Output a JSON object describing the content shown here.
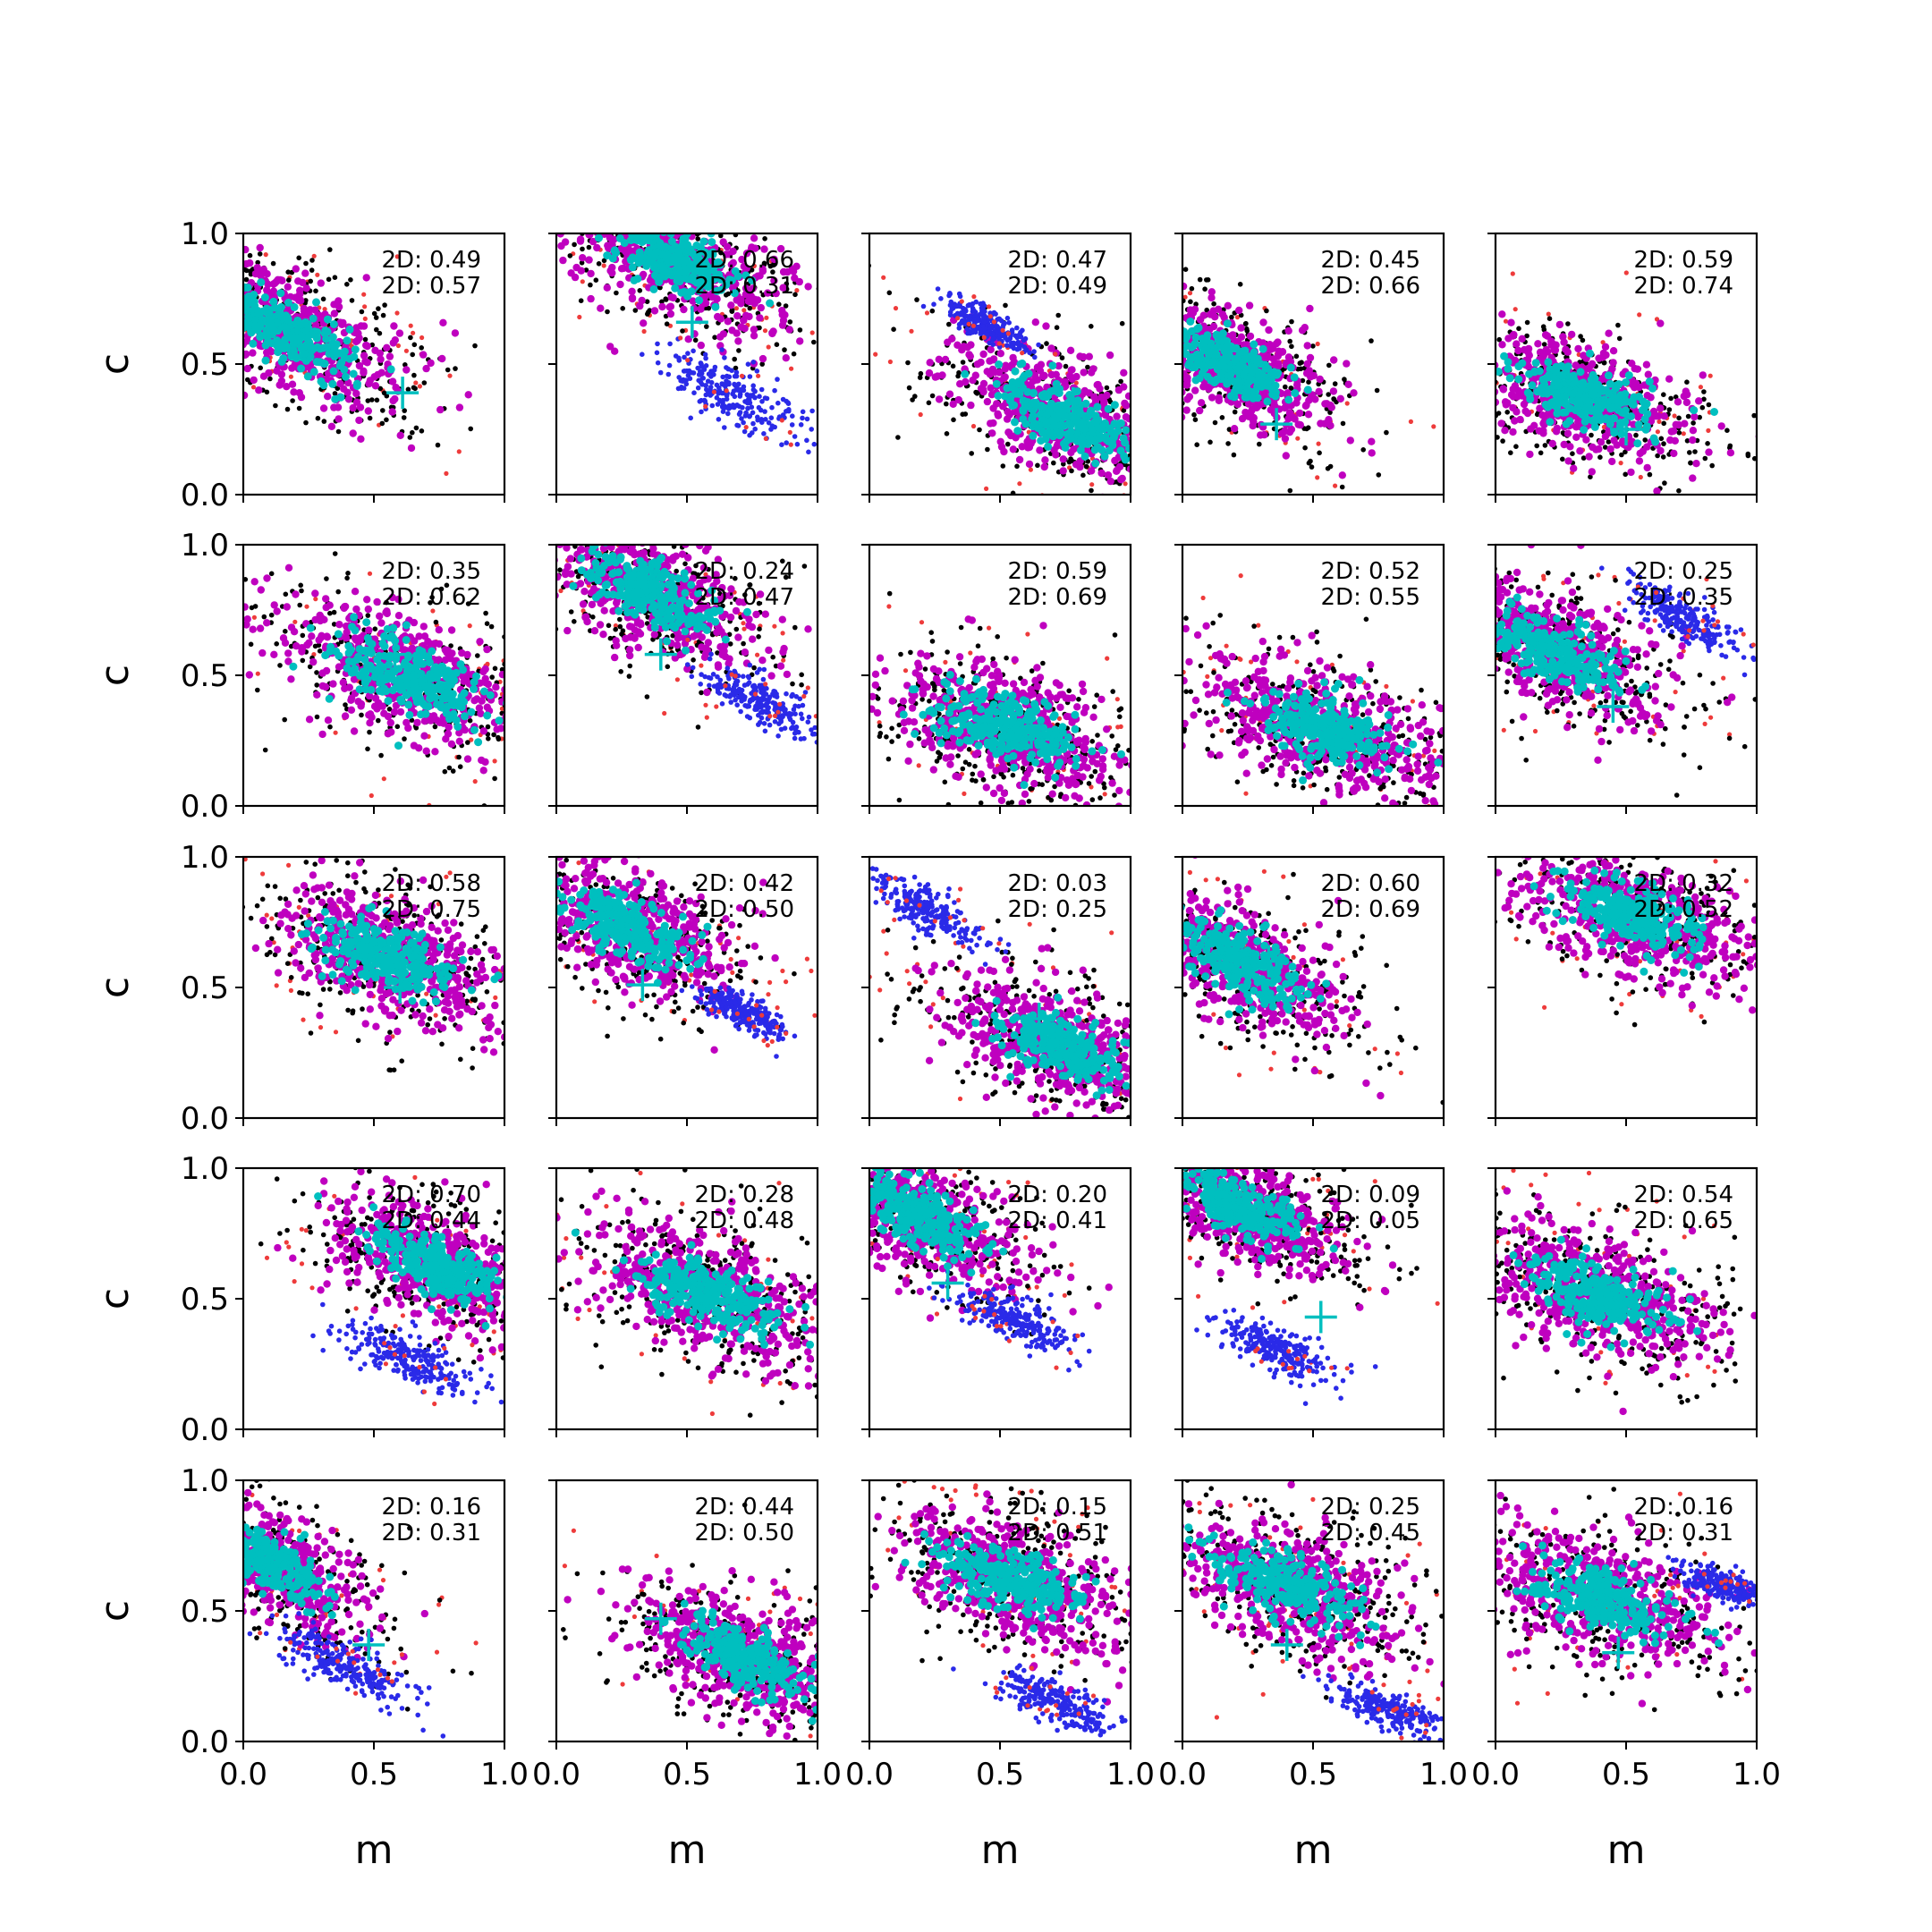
{
  "chart_data": {
    "type": "scatter",
    "grid": false,
    "rows": 5,
    "cols": 5,
    "xlabel": "m",
    "ylabel": "c",
    "xlim": [
      0.0,
      1.0
    ],
    "ylim": [
      0.0,
      1.0
    ],
    "xticks": [
      "0.0",
      "0.5",
      "1.0"
    ],
    "yticks": [
      "0.0",
      "0.5",
      "1.0"
    ],
    "annotation_prefix": "2D: ",
    "colors": {
      "red": "#ee3b3b",
      "black": "#000000",
      "blue": "#2a2ae8",
      "magenta": "#bf00bf",
      "cyan": "#00bfbf",
      "marker": "#00bfbf"
    },
    "panels": [
      {
        "row": 0,
        "col": 0,
        "annotations": [
          "0.49",
          "0.57"
        ],
        "marker": [
          0.61,
          0.39
        ],
        "clusters": [
          {
            "type": "main",
            "center": [
              0.18,
              0.62
            ],
            "slope": -0.5,
            "spread": 0.24
          }
        ]
      },
      {
        "row": 0,
        "col": 1,
        "annotations": [
          "0.66",
          "0.31"
        ],
        "marker": [
          0.52,
          0.66
        ],
        "clusters": [
          {
            "type": "main",
            "center": [
              0.45,
              0.9
            ],
            "slope": -0.45,
            "spread": 0.24
          },
          {
            "type": "blue",
            "center": [
              0.68,
              0.38
            ],
            "slope": -0.55,
            "spread": 0.18
          }
        ]
      },
      {
        "row": 0,
        "col": 2,
        "annotations": [
          "0.47",
          "0.49"
        ],
        "marker": [
          0.78,
          0.35
        ],
        "clusters": [
          {
            "type": "main",
            "center": [
              0.74,
              0.3
            ],
            "slope": -0.5,
            "spread": 0.24
          },
          {
            "type": "blue",
            "center": [
              0.45,
              0.65
            ],
            "slope": -0.5,
            "spread": 0.1
          }
        ]
      },
      {
        "row": 0,
        "col": 3,
        "annotations": [
          "0.45",
          "0.66"
        ],
        "marker": [
          0.36,
          0.27
        ],
        "clusters": [
          {
            "type": "main",
            "center": [
              0.18,
              0.5
            ],
            "slope": -0.55,
            "spread": 0.22
          }
        ]
      },
      {
        "row": 0,
        "col": 4,
        "annotations": [
          "0.59",
          "0.74"
        ],
        "marker": [
          0.5,
          0.25
        ],
        "clusters": [
          {
            "type": "main",
            "center": [
              0.32,
              0.38
            ],
            "slope": -0.35,
            "spread": 0.24
          }
        ]
      },
      {
        "row": 1,
        "col": 0,
        "annotations": [
          "0.35",
          "0.62"
        ],
        "marker": [
          0.58,
          0.58
        ],
        "clusters": [
          {
            "type": "main",
            "center": [
              0.62,
              0.5
            ],
            "slope": -0.45,
            "spread": 0.26
          }
        ]
      },
      {
        "row": 1,
        "col": 1,
        "annotations": [
          "0.24",
          "0.47"
        ],
        "marker": [
          0.4,
          0.58
        ],
        "clusters": [
          {
            "type": "main",
            "center": [
              0.35,
              0.82
            ],
            "slope": -0.5,
            "spread": 0.24
          },
          {
            "type": "blue",
            "center": [
              0.78,
              0.4
            ],
            "slope": -0.55,
            "spread": 0.14
          }
        ]
      },
      {
        "row": 1,
        "col": 2,
        "annotations": [
          "0.59",
          "0.69"
        ],
        "marker": [
          0.62,
          0.28
        ],
        "clusters": [
          {
            "type": "main",
            "center": [
              0.52,
              0.3
            ],
            "slope": -0.35,
            "spread": 0.26
          }
        ]
      },
      {
        "row": 1,
        "col": 3,
        "annotations": [
          "0.52",
          "0.55"
        ],
        "marker": [
          0.62,
          0.28
        ],
        "clusters": [
          {
            "type": "main",
            "center": [
              0.55,
              0.3
            ],
            "slope": -0.35,
            "spread": 0.26
          }
        ]
      },
      {
        "row": 1,
        "col": 4,
        "annotations": [
          "0.25",
          "0.35"
        ],
        "marker": [
          0.45,
          0.38
        ],
        "clusters": [
          {
            "type": "main",
            "center": [
              0.22,
              0.6
            ],
            "slope": -0.45,
            "spread": 0.24
          },
          {
            "type": "blue",
            "center": [
              0.72,
              0.72
            ],
            "slope": -0.55,
            "spread": 0.14
          }
        ]
      },
      {
        "row": 2,
        "col": 0,
        "annotations": [
          "0.58",
          "0.75"
        ],
        "marker": [
          0.6,
          0.5
        ],
        "clusters": [
          {
            "type": "main",
            "center": [
              0.55,
              0.62
            ],
            "slope": -0.4,
            "spread": 0.26
          }
        ]
      },
      {
        "row": 2,
        "col": 1,
        "annotations": [
          "0.42",
          "0.50"
        ],
        "marker": [
          0.33,
          0.51
        ],
        "clusters": [
          {
            "type": "main",
            "center": [
              0.28,
              0.72
            ],
            "slope": -0.45,
            "spread": 0.24
          },
          {
            "type": "blue",
            "center": [
              0.72,
              0.4
            ],
            "slope": -0.5,
            "spread": 0.1
          }
        ]
      },
      {
        "row": 2,
        "col": 2,
        "annotations": [
          "0.03",
          "0.25"
        ],
        "marker": [
          0.65,
          0.38
        ],
        "clusters": [
          {
            "type": "main",
            "center": [
              0.72,
              0.28
            ],
            "slope": -0.45,
            "spread": 0.24
          },
          {
            "type": "blue",
            "center": [
              0.22,
              0.8
            ],
            "slope": -0.55,
            "spread": 0.14
          }
        ]
      },
      {
        "row": 2,
        "col": 3,
        "annotations": [
          "0.60",
          "0.69"
        ],
        "marker": [
          0.33,
          0.6
        ],
        "clusters": [
          {
            "type": "main",
            "center": [
              0.22,
              0.6
            ],
            "slope": -0.55,
            "spread": 0.24
          }
        ]
      },
      {
        "row": 2,
        "col": 4,
        "annotations": [
          "0.32",
          "0.52"
        ],
        "marker": [
          0.55,
          0.75
        ],
        "clusters": [
          {
            "type": "main",
            "center": [
              0.52,
              0.78
            ],
            "slope": -0.35,
            "spread": 0.26
          }
        ]
      },
      {
        "row": 3,
        "col": 0,
        "annotations": [
          "0.70",
          "0.44"
        ],
        "marker": [
          0.59,
          0.69
        ],
        "clusters": [
          {
            "type": "main",
            "center": [
              0.75,
              0.62
            ],
            "slope": -0.45,
            "spread": 0.24
          },
          {
            "type": "blue",
            "center": [
              0.62,
              0.28
            ],
            "slope": -0.5,
            "spread": 0.16
          }
        ]
      },
      {
        "row": 3,
        "col": 1,
        "annotations": [
          "0.28",
          "0.48"
        ],
        "marker": [
          0.58,
          0.5
        ],
        "clusters": [
          {
            "type": "main",
            "center": [
              0.58,
              0.52
            ],
            "slope": -0.4,
            "spread": 0.26
          }
        ]
      },
      {
        "row": 3,
        "col": 2,
        "annotations": [
          "0.20",
          "0.41"
        ],
        "marker": [
          0.3,
          0.56
        ],
        "clusters": [
          {
            "type": "main",
            "center": [
              0.18,
              0.82
            ],
            "slope": -0.5,
            "spread": 0.24
          },
          {
            "type": "blue",
            "center": [
              0.55,
              0.42
            ],
            "slope": -0.45,
            "spread": 0.14
          }
        ]
      },
      {
        "row": 3,
        "col": 3,
        "annotations": [
          "0.09",
          "0.05"
        ],
        "marker": [
          0.53,
          0.43
        ],
        "clusters": [
          {
            "type": "main",
            "center": [
              0.22,
              0.85
            ],
            "slope": -0.5,
            "spread": 0.22
          },
          {
            "type": "blue",
            "center": [
              0.38,
              0.3
            ],
            "slope": -0.45,
            "spread": 0.14
          }
        ]
      },
      {
        "row": 3,
        "col": 4,
        "annotations": [
          "0.54",
          "0.65"
        ],
        "marker": [
          0.4,
          0.52
        ],
        "clusters": [
          {
            "type": "main",
            "center": [
              0.38,
              0.52
            ],
            "slope": -0.4,
            "spread": 0.26
          }
        ]
      },
      {
        "row": 4,
        "col": 0,
        "annotations": [
          "0.16",
          "0.31"
        ],
        "marker": [
          0.48,
          0.37
        ],
        "clusters": [
          {
            "type": "main",
            "center": [
              0.1,
              0.68
            ],
            "slope": -0.6,
            "spread": 0.22
          },
          {
            "type": "blue",
            "center": [
              0.4,
              0.28
            ],
            "slope": -0.5,
            "spread": 0.16
          }
        ]
      },
      {
        "row": 4,
        "col": 1,
        "annotations": [
          "0.44",
          "0.50"
        ],
        "marker": [
          0.4,
          0.47
        ],
        "clusters": [
          {
            "type": "main",
            "center": [
              0.72,
              0.32
            ],
            "slope": -0.45,
            "spread": 0.24
          }
        ]
      },
      {
        "row": 4,
        "col": 2,
        "annotations": [
          "0.15",
          "0.51"
        ],
        "marker": [
          0.5,
          0.6
        ],
        "clusters": [
          {
            "type": "main",
            "center": [
              0.55,
              0.62
            ],
            "slope": -0.35,
            "spread": 0.26
          },
          {
            "type": "blue",
            "center": [
              0.72,
              0.15
            ],
            "slope": -0.4,
            "spread": 0.14
          }
        ]
      },
      {
        "row": 4,
        "col": 3,
        "annotations": [
          "0.25",
          "0.45"
        ],
        "marker": [
          0.4,
          0.37
        ],
        "clusters": [
          {
            "type": "main",
            "center": [
              0.4,
              0.6
            ],
            "slope": -0.4,
            "spread": 0.26
          },
          {
            "type": "blue",
            "center": [
              0.8,
              0.12
            ],
            "slope": -0.4,
            "spread": 0.12
          }
        ]
      },
      {
        "row": 4,
        "col": 4,
        "annotations": [
          "0.16",
          "0.31"
        ],
        "marker": [
          0.47,
          0.34
        ],
        "clusters": [
          {
            "type": "main",
            "center": [
              0.4,
              0.55
            ],
            "slope": -0.3,
            "spread": 0.26
          },
          {
            "type": "blue",
            "center": [
              0.88,
              0.6
            ],
            "slope": -0.35,
            "spread": 0.1
          }
        ]
      }
    ]
  }
}
